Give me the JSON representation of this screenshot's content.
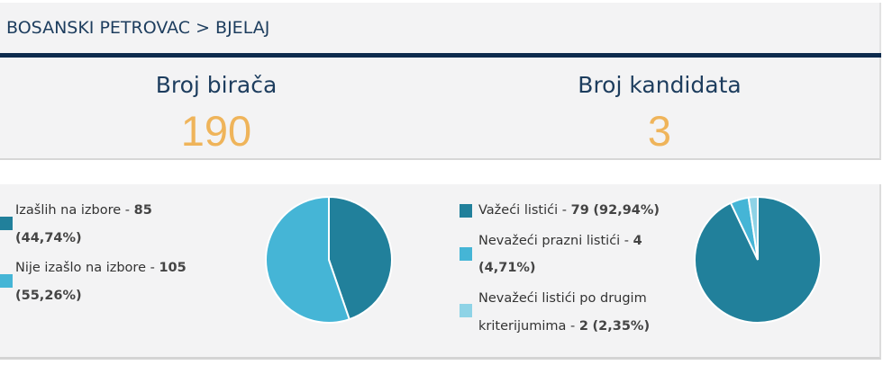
{
  "breadcrumb": "BOSANSKI PETROVAC > BJELAJ",
  "stats": {
    "voters_label": "Broj birača",
    "voters_value": "190",
    "candidates_label": "Broj kandidata",
    "candidates_value": "3"
  },
  "turnout_chart": {
    "items": [
      {
        "label": "Izašlih na izbore - ",
        "count": "85",
        "pct": "(44,74%)",
        "color": "#21809b"
      },
      {
        "label": "Nije izašlo na izbore - ",
        "count": "105",
        "pct": "(55,26%)",
        "color": "#45b5d6"
      }
    ]
  },
  "ballots_chart": {
    "items": [
      {
        "label": "Važeći listići - ",
        "count": "79",
        "pct": "(92,94%)",
        "color": "#21809b"
      },
      {
        "label": "Nevažeći prazni listići - ",
        "count": "4",
        "pct": "(4,71%)",
        "color": "#45b5d6"
      },
      {
        "label_line1": "Nevažeći listići po drugim",
        "label_line2": "kriterijumima - ",
        "count": "2",
        "pct": "(2,35%)",
        "color": "#8ed3e6"
      }
    ]
  },
  "chart_data": [
    {
      "type": "pie",
      "categories": [
        "Izašlih na izbore",
        "Nije izašlo na izbore"
      ],
      "values": [
        85,
        105
      ],
      "colors": [
        "#21809b",
        "#45b5d6"
      ],
      "legend": "left"
    },
    {
      "type": "pie",
      "categories": [
        "Važeći listići",
        "Nevažeći prazni listići",
        "Nevažeći listići po drugim kriterijumima"
      ],
      "values": [
        79,
        4,
        2
      ],
      "colors": [
        "#21809b",
        "#45b5d6",
        "#8ed3e6"
      ],
      "legend": "left"
    }
  ]
}
